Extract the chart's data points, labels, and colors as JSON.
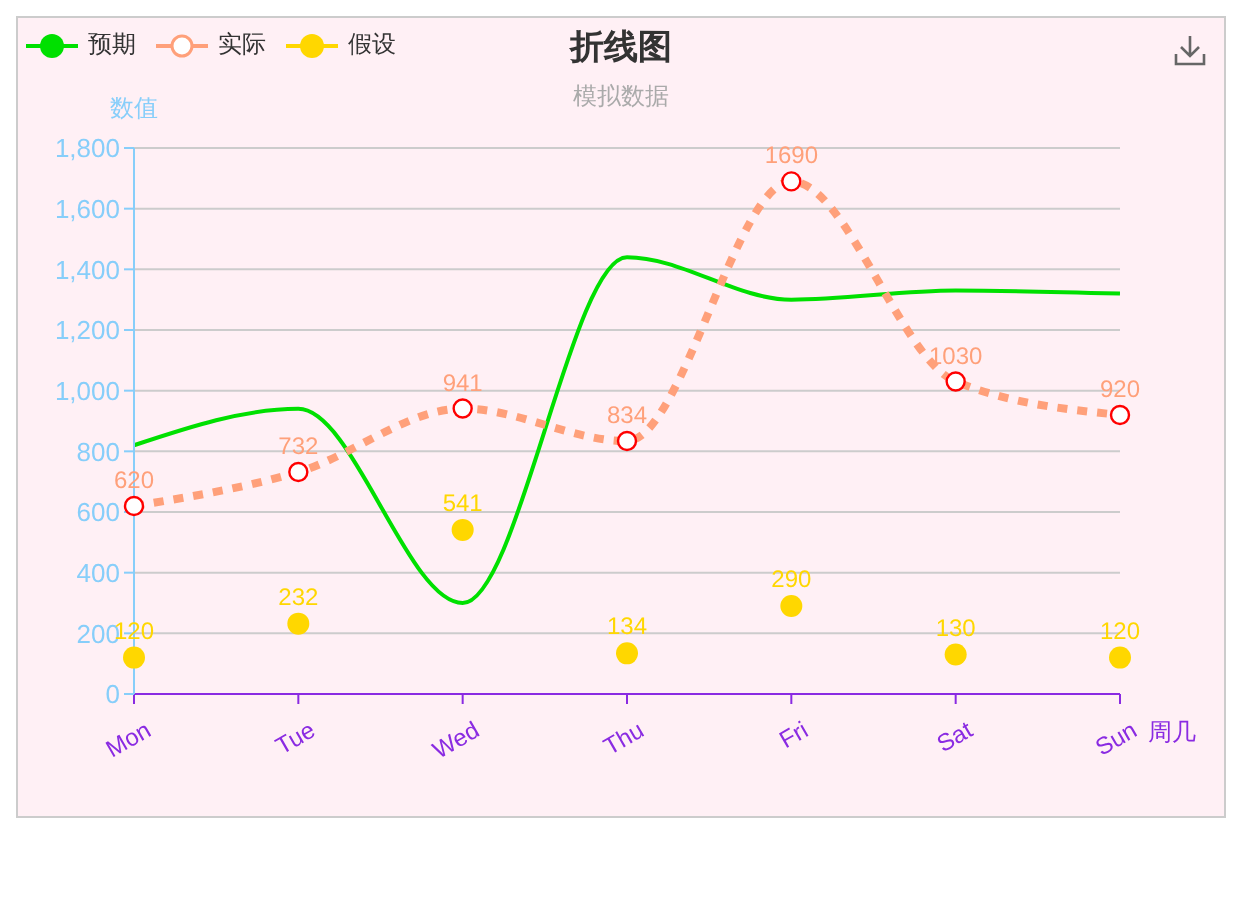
{
  "chart_data": {
    "type": "line",
    "title": "折线图",
    "subtitle": "模拟数据",
    "xlabel": "周几",
    "ylabel": "数值",
    "categories": [
      "Mon",
      "Tue",
      "Wed",
      "Thu",
      "Fri",
      "Sat",
      "Sun"
    ],
    "series": [
      {
        "name": "预期",
        "color": "#00e000",
        "values": [
          820,
          940,
          300,
          1440,
          1300,
          1330,
          1320
        ],
        "marker": "none",
        "line_style": "solid"
      },
      {
        "name": "实际",
        "color": "#ffa07a",
        "colors": [
          "#ff0000",
          "#ff0000",
          "#ff0000",
          "#ff0000",
          "#ff0000",
          "#ff0000",
          "#ff0000"
        ],
        "values": [
          620,
          732,
          941,
          834,
          1690,
          1030,
          920
        ],
        "marker": "circle",
        "line_style": "dotted",
        "value_labels": [
          "620",
          "732",
          "941",
          "834",
          "1690",
          "1030",
          "920"
        ]
      },
      {
        "name": "假设",
        "type": "scatter",
        "color": "#ffd700",
        "values": [
          120,
          232,
          541,
          134,
          290,
          130,
          120
        ],
        "marker": "circle",
        "value_labels": [
          "120",
          "232",
          "541",
          "134",
          "290",
          "130",
          "120"
        ]
      }
    ],
    "ylim": [
      0,
      1800
    ],
    "yticks": [
      0,
      200,
      400,
      600,
      800,
      {
        "value": 1000,
        "label": "1,000"
      },
      {
        "value": 1200,
        "label": "1,200"
      },
      {
        "value": 1400,
        "label": "1,400"
      },
      {
        "value": 1600,
        "label": "1,600"
      },
      {
        "value": 1800,
        "label": "1,800"
      }
    ],
    "grid": "y",
    "legend": "top left"
  }
}
